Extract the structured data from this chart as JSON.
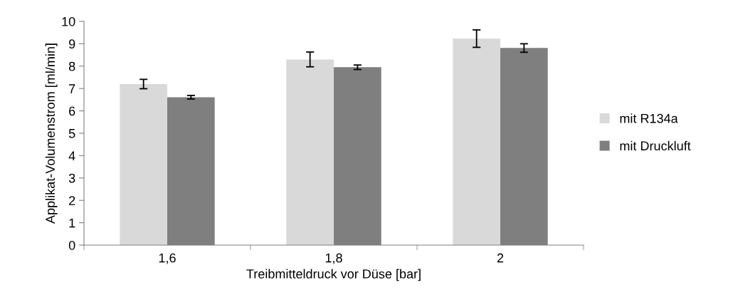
{
  "chart_data": {
    "type": "bar",
    "xlabel": "Treibmitteldruck vor Düse [bar]",
    "ylabel": "Applikat-Volumenstrom [ml/min]",
    "categories": [
      "1,6",
      "1,8",
      "2"
    ],
    "series": [
      {
        "name": "mit R134a",
        "color": "#d9d9d9",
        "values": [
          7.2,
          8.3,
          9.23
        ],
        "errors": [
          0.21,
          0.33,
          0.39
        ]
      },
      {
        "name": "mit Druckluft",
        "color": "#7f7f7f",
        "values": [
          6.61,
          7.95,
          8.81
        ],
        "errors": [
          0.08,
          0.1,
          0.19
        ]
      }
    ],
    "ylim": [
      0,
      10
    ],
    "yticks": [
      0,
      1,
      2,
      3,
      4,
      5,
      6,
      7,
      8,
      9,
      10
    ],
    "grid": false,
    "legend": "right"
  }
}
